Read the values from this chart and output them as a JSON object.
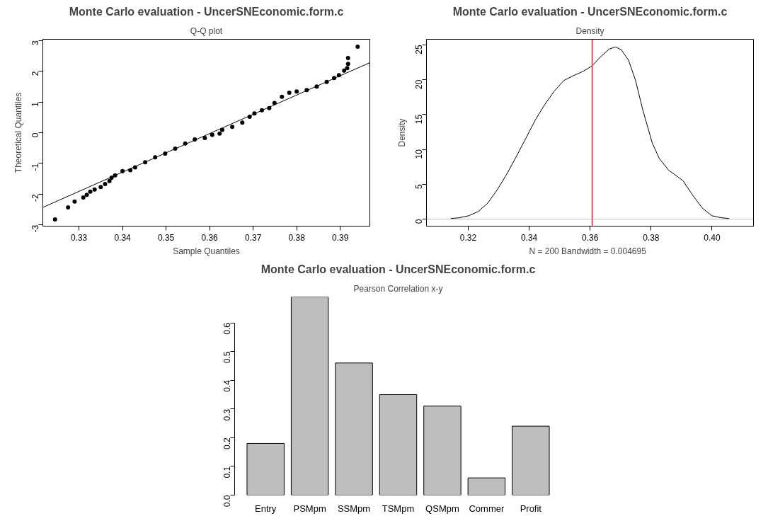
{
  "chart_data": [
    {
      "type": "scatter",
      "title": "Monte Carlo evaluation - UncerSNEconomic.form.c",
      "subtitle": "Q-Q plot",
      "xlabel": "Sample Quantiles",
      "ylabel": "Theoretical Quantiles",
      "xlim": [
        0.3217,
        0.3968
      ],
      "ylim": [
        -3.04,
        3.04
      ],
      "xticks": [
        0.33,
        0.34,
        0.35,
        0.36,
        0.37,
        0.38,
        0.39
      ],
      "yticks": [
        -3,
        -2,
        -1,
        0,
        1,
        2,
        3
      ],
      "series": [
        {
          "type": "scatter",
          "color": "#000000",
          "marker": "circle",
          "x": [
            0.3245,
            0.3275,
            0.329,
            0.331,
            0.3318,
            0.3326,
            0.3336,
            0.335,
            0.336,
            0.337,
            0.3375,
            0.3383,
            0.34,
            0.3418,
            0.3429,
            0.3452,
            0.3475,
            0.3498,
            0.3521,
            0.3544,
            0.3566,
            0.3589,
            0.3606,
            0.3623,
            0.3629,
            0.3652,
            0.3675,
            0.3692,
            0.3703,
            0.372,
            0.3737,
            0.3749,
            0.3766,
            0.3783,
            0.38,
            0.3823,
            0.3846,
            0.3869,
            0.3886,
            0.3897,
            0.3909,
            0.3916,
            0.3918,
            0.3918,
            0.394
          ],
          "values": [
            -2.82,
            -2.43,
            -2.24,
            -2.11,
            -2.02,
            -1.92,
            -1.85,
            -1.77,
            -1.67,
            -1.57,
            -1.46,
            -1.39,
            -1.25,
            -1.22,
            -1.13,
            -0.96,
            -0.8,
            -0.68,
            -0.52,
            -0.35,
            -0.22,
            -0.17,
            -0.07,
            -0.03,
            0.09,
            0.19,
            0.33,
            0.52,
            0.63,
            0.73,
            0.8,
            0.97,
            1.17,
            1.3,
            1.34,
            1.39,
            1.5,
            1.65,
            1.78,
            1.87,
            2.02,
            2.1,
            2.24,
            2.43,
            2.8
          ]
        },
        {
          "type": "line",
          "color": "#000000",
          "x": [
            0.3217,
            0.3968
          ],
          "values": [
            -2.43,
            2.28
          ]
        }
      ]
    },
    {
      "type": "line",
      "title": "Monte Carlo evaluation - UncerSNEconomic.form.c",
      "subtitle": "Density",
      "xlabel": "N = 200   Bandwidth = 0.004695",
      "ylabel": "Density",
      "xlim": [
        0.3063,
        0.4136
      ],
      "ylim": [
        -1.0,
        25.8
      ],
      "xticks": [
        0.32,
        0.34,
        0.36,
        0.38,
        {
          "value": 0.4,
          "label": "0.40"
        }
      ],
      "yticks": [
        0,
        5,
        10,
        15,
        20,
        25
      ],
      "color": "#000000",
      "x": [
        0.3143,
        0.317,
        0.3202,
        0.3233,
        0.3264,
        0.3295,
        0.3327,
        0.3358,
        0.3389,
        0.3421,
        0.3452,
        0.3483,
        0.3514,
        0.3546,
        0.3577,
        0.3607,
        0.3632,
        0.3663,
        0.3683,
        0.3702,
        0.3726,
        0.3749,
        0.3772,
        0.3804,
        0.3827,
        0.3858,
        0.389,
        0.3905,
        0.3937,
        0.3968,
        0.3999,
        0.4031,
        0.4056
      ],
      "values": [
        0.1,
        0.2,
        0.5,
        1.1,
        2.3,
        4.2,
        6.5,
        9.0,
        11.6,
        14.3,
        16.5,
        18.4,
        19.9,
        20.6,
        21.2,
        22.0,
        23.2,
        24.4,
        24.7,
        24.3,
        22.8,
        19.9,
        15.8,
        10.9,
        8.7,
        7.0,
        6.0,
        5.5,
        3.4,
        1.6,
        0.5,
        0.2,
        0.1
      ],
      "ref_lines": [
        {
          "axis": "y",
          "value": 0,
          "color": "#bebebe"
        },
        {
          "axis": "x",
          "value": 0.3607,
          "color": "#df536b"
        }
      ]
    },
    {
      "type": "bar",
      "title": "Monte Carlo evaluation - UncerSNEconomic.form.c",
      "subtitle": "Pearson Correlation x-y",
      "categories": [
        "Entry",
        "PSMpm",
        "SSMpm",
        "TSMpm",
        "QSMpm",
        "Commer",
        "Profit"
      ],
      "values": [
        0.18,
        0.69,
        0.46,
        0.35,
        0.31,
        0.06,
        0.24
      ],
      "color": "#bebebe",
      "ylim": [
        0,
        0.69
      ],
      "yticks": [
        {
          "value": 0,
          "label": "0.0"
        },
        0.1,
        0.2,
        0.3,
        0.4,
        0.5,
        0.6
      ]
    }
  ]
}
